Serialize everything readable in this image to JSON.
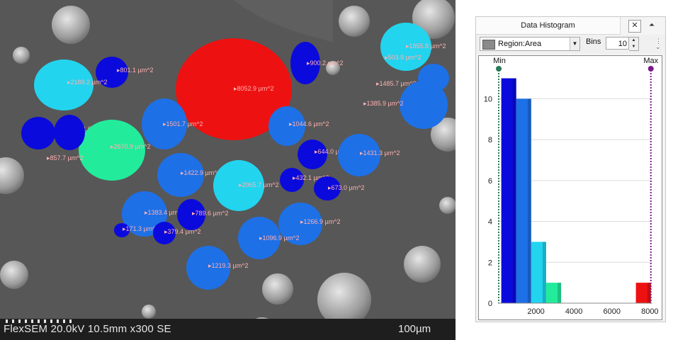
{
  "sem": {
    "info_text": "FlexSEM 20.0kV 10.5mm x300 SE",
    "scale_label": "100µm",
    "grains": [
      {
        "label": "801.1 µm^2",
        "color": "#0a0adc"
      },
      {
        "label": "8052.9 µm^2",
        "color": "#ee1111"
      },
      {
        "label": "900.2 µm^2",
        "color": "#0a0adc"
      },
      {
        "label": "1855.8 µm^2",
        "color": "#22d4ee"
      },
      {
        "label": "503.9 µm^2",
        "color": "#0a0adc"
      },
      {
        "label": "2189.2 µm^2",
        "color": "#22d4ee"
      },
      {
        "label": "1485.7 µm^2",
        "color": "#1e70e6"
      },
      {
        "label": "1385.9 µm^2",
        "color": "#1e70e6"
      },
      {
        "label": "771.0 µm^2",
        "color": "#0a0adc"
      },
      {
        "label": "1501.7 µm^2",
        "color": "#1e70e6"
      },
      {
        "label": "1044.6 µm^2",
        "color": "#1e70e6"
      },
      {
        "label": "2670.9 µm^2",
        "color": "#22ec9c"
      },
      {
        "label": "857.7 µm^2",
        "color": "#0a0adc"
      },
      {
        "label": "644.0 µm^2",
        "color": "#0a0adc"
      },
      {
        "label": "1431.3 µm^2",
        "color": "#1e70e6"
      },
      {
        "label": "1422.9 µm^2",
        "color": "#1e70e6"
      },
      {
        "label": "2065.7 µm^2",
        "color": "#22d4ee"
      },
      {
        "label": "432.1 µm^2",
        "color": "#0a0adc"
      },
      {
        "label": "673.0 µm^2",
        "color": "#0a0adc"
      },
      {
        "label": "1383.4 µm^2",
        "color": "#1e70e6"
      },
      {
        "label": "789.6 µm^2",
        "color": "#0a0adc"
      },
      {
        "label": "1266.9 µm^2",
        "color": "#1e70e6"
      },
      {
        "label": "171.3 µm^2",
        "color": "#0a0adc"
      },
      {
        "label": "379.4 µm^2",
        "color": "#0a0adc"
      },
      {
        "label": "1096.9 µm^2",
        "color": "#1e70e6"
      },
      {
        "label": "1219.3 µm^2",
        "color": "#1e70e6"
      }
    ]
  },
  "panel": {
    "title": "Data Histogram",
    "close_glyph": "✕",
    "pin_glyph": "⏶",
    "region_label": "Region:Area",
    "bins_label": "Bins",
    "bins_value": "10",
    "min_label": "Min",
    "max_label": "Max",
    "colors": {
      "min_marker": "#2a7a5a",
      "max_marker": "#7a1a8a"
    }
  },
  "chart_data": {
    "type": "bar",
    "title": "",
    "xlabel": "",
    "ylabel": "",
    "xlim": [
      0,
      8100
    ],
    "ylim": [
      0,
      11.4
    ],
    "x_ticks": [
      2000,
      4000,
      6000,
      8000
    ],
    "y_ticks": [
      0,
      2,
      4,
      6,
      8,
      10
    ],
    "grid": "horizontal",
    "bins": [
      {
        "start": 171.3,
        "end": 959.46,
        "count": 11,
        "color": "#0a0adc"
      },
      {
        "start": 959.46,
        "end": 1747.62,
        "count": 10,
        "color": "#1e70e6"
      },
      {
        "start": 1747.62,
        "end": 2535.78,
        "count": 3,
        "color": "#22d4ee"
      },
      {
        "start": 2535.78,
        "end": 3323.94,
        "count": 1,
        "color": "#22ec9c"
      },
      {
        "start": 3323.94,
        "end": 4112.1,
        "count": 0,
        "color": "#80ee40"
      },
      {
        "start": 4112.1,
        "end": 4900.26,
        "count": 0,
        "color": "#d0ee20"
      },
      {
        "start": 4900.26,
        "end": 5688.42,
        "count": 0,
        "color": "#eed020"
      },
      {
        "start": 5688.42,
        "end": 6476.58,
        "count": 0,
        "color": "#ee9020"
      },
      {
        "start": 6476.58,
        "end": 7264.74,
        "count": 0,
        "color": "#ee5020"
      },
      {
        "start": 7264.74,
        "end": 8052.9,
        "count": 1,
        "color": "#ee1111"
      }
    ],
    "min_value": 171.3,
    "max_value": 8052.9
  }
}
